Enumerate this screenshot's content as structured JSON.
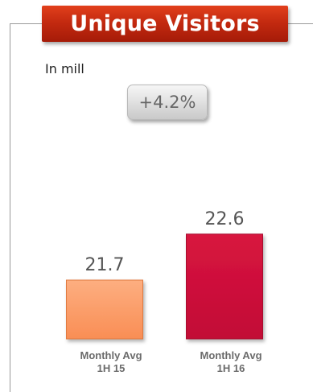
{
  "title": "Unique Visitors",
  "unit_label": "In mill",
  "growth_badge": "+4.2%",
  "colors": {
    "title_banner": "#c42a10",
    "bar_1h15": "#fb9a64",
    "bar_1h16": "#d0103c",
    "frame_line": "#9a9a9a"
  },
  "chart_data": {
    "type": "bar",
    "categories": [
      [
        "Monthly Avg",
        "1H 15"
      ],
      [
        "Monthly Avg",
        "1H 16"
      ]
    ],
    "values": [
      21.7,
      22.6
    ],
    "value_labels": [
      "21.7",
      "22.6"
    ],
    "title": "Unique Visitors",
    "xlabel": "",
    "ylabel": "",
    "grid": false,
    "legend": "none"
  }
}
